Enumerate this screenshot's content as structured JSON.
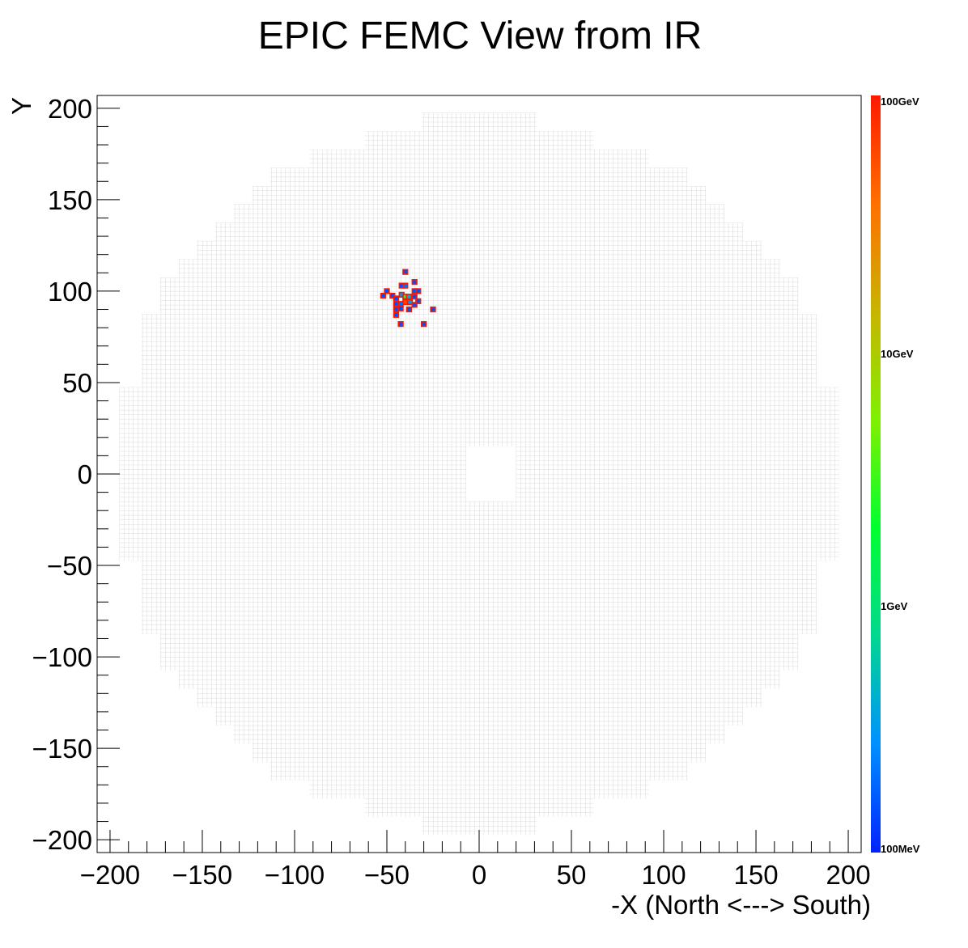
{
  "chart_data": {
    "type": "heatmap",
    "title": "EPIC FEMC View from IR",
    "xlabel": "-X (North <---> South)",
    "ylabel": "Y",
    "xlim": [
      -207,
      207
    ],
    "ylim": [
      -207,
      207
    ],
    "x_ticks": [
      -200,
      -150,
      -100,
      -50,
      0,
      50,
      100,
      150,
      200
    ],
    "y_ticks": [
      -200,
      -150,
      -100,
      -50,
      0,
      50,
      100,
      150,
      200
    ],
    "x_tick_labels": [
      "−200",
      "−150",
      "−100",
      "−50",
      "0",
      "50",
      "100",
      "150",
      "200"
    ],
    "y_tick_labels": [
      "−200",
      "−150",
      "−100",
      "−50",
      "0",
      "50",
      "100",
      "150",
      "200"
    ],
    "colorbar": {
      "scale": "log",
      "range_GeV": [
        0.1,
        100
      ],
      "labels": [
        {
          "text": "100GeV",
          "value": 100
        },
        {
          "text": "10GeV",
          "value": 10
        },
        {
          "text": "1GeV",
          "value": 1
        },
        {
          "text": "100MeV",
          "value": 0.1
        }
      ],
      "colors": [
        "#0022ff",
        "#0090ff",
        "#00d890",
        "#00ff30",
        "#80f000",
        "#c8b400",
        "#ff7000",
        "#ff1800"
      ]
    },
    "detector": {
      "cell_size": 2.5,
      "beam_hole": {
        "x": [
          -7,
          20
        ],
        "y": [
          -15,
          15
        ]
      },
      "rows": [
        {
          "y": [
            -197.5,
            197.5
          ],
          "x": [
            -31,
            31
          ]
        },
        {
          "y": [
            -187.5,
            187.5
          ],
          "x": [
            -62,
            62
          ]
        },
        {
          "y": [
            -177.5,
            177.5
          ],
          "x": [
            -92,
            92
          ]
        },
        {
          "y": [
            -167.5,
            167.5
          ],
          "x": [
            -113,
            113
          ]
        },
        {
          "y": [
            -157.5,
            157.5
          ],
          "x": [
            -123,
            123
          ]
        },
        {
          "y": [
            -147.5,
            147.5
          ],
          "x": [
            -133,
            133
          ]
        },
        {
          "y": [
            -137.5,
            137.5
          ],
          "x": [
            -143,
            143
          ]
        },
        {
          "y": [
            -127.5,
            127.5
          ],
          "x": [
            -153,
            153
          ]
        },
        {
          "y": [
            -117.5,
            117.5
          ],
          "x": [
            -163,
            163
          ]
        },
        {
          "y": [
            -107.5,
            107.5
          ],
          "x": [
            -173,
            173
          ]
        },
        {
          "y": [
            -97.5,
            97.5
          ],
          "x": [
            -173,
            173
          ]
        },
        {
          "y": [
            -87.5,
            87.5
          ],
          "x": [
            -183,
            183
          ]
        },
        {
          "y": [
            -77.5,
            77.5
          ],
          "x": [
            -183,
            183
          ]
        },
        {
          "y": [
            -67.5,
            67.5
          ],
          "x": [
            -183,
            183
          ]
        },
        {
          "y": [
            -57.5,
            57.5
          ],
          "x": [
            -183,
            183
          ]
        },
        {
          "y": [
            -47.5,
            47.5
          ],
          "x": [
            -195,
            195
          ]
        },
        {
          "y": [
            -37.5,
            37.5
          ],
          "x": [
            -195,
            195
          ]
        },
        {
          "y": [
            -27.5,
            27.5
          ],
          "x": [
            -195,
            195
          ]
        },
        {
          "y": [
            -17.5,
            17.5
          ],
          "x": [
            -193,
            195
          ]
        },
        {
          "y": [
            -7.5,
            7.5
          ],
          "x": [
            -193,
            195
          ]
        }
      ]
    },
    "hits": [
      {
        "x": -40,
        "y": 110.5,
        "e": 0.15
      },
      {
        "x": -42,
        "y": 103,
        "e": 0.15
      },
      {
        "x": -40,
        "y": 103,
        "e": 0.2
      },
      {
        "x": -50,
        "y": 100,
        "e": 0.15
      },
      {
        "x": -35,
        "y": 105,
        "e": 0.15
      },
      {
        "x": -35,
        "y": 100,
        "e": 0.15
      },
      {
        "x": -33,
        "y": 100,
        "e": 0.15
      },
      {
        "x": -52,
        "y": 97.5,
        "e": 0.15
      },
      {
        "x": -47,
        "y": 97.5,
        "e": 0.15
      },
      {
        "x": -45,
        "y": 96,
        "e": 0.15
      },
      {
        "x": -42,
        "y": 98,
        "e": 0.3
      },
      {
        "x": -40,
        "y": 97,
        "e": 2.0
      },
      {
        "x": -40,
        "y": 94,
        "e": 60
      },
      {
        "x": -38,
        "y": 97,
        "e": 0.4
      },
      {
        "x": -37.5,
        "y": 94,
        "e": 0.3
      },
      {
        "x": -35,
        "y": 97,
        "e": 0.15
      },
      {
        "x": -45,
        "y": 93,
        "e": 0.15
      },
      {
        "x": -42.5,
        "y": 93,
        "e": 0.2
      },
      {
        "x": -35,
        "y": 92.5,
        "e": 0.15
      },
      {
        "x": -33,
        "y": 94.5,
        "e": 0.15
      },
      {
        "x": -45,
        "y": 90,
        "e": 0.15
      },
      {
        "x": -42.5,
        "y": 90.5,
        "e": 0.15
      },
      {
        "x": -38,
        "y": 90,
        "e": 0.15
      },
      {
        "x": -25,
        "y": 90,
        "e": 0.15
      },
      {
        "x": -45,
        "y": 87,
        "e": 0.15
      },
      {
        "x": -42.5,
        "y": 82,
        "e": 0.15
      },
      {
        "x": -30,
        "y": 82,
        "e": 0.15
      }
    ]
  }
}
